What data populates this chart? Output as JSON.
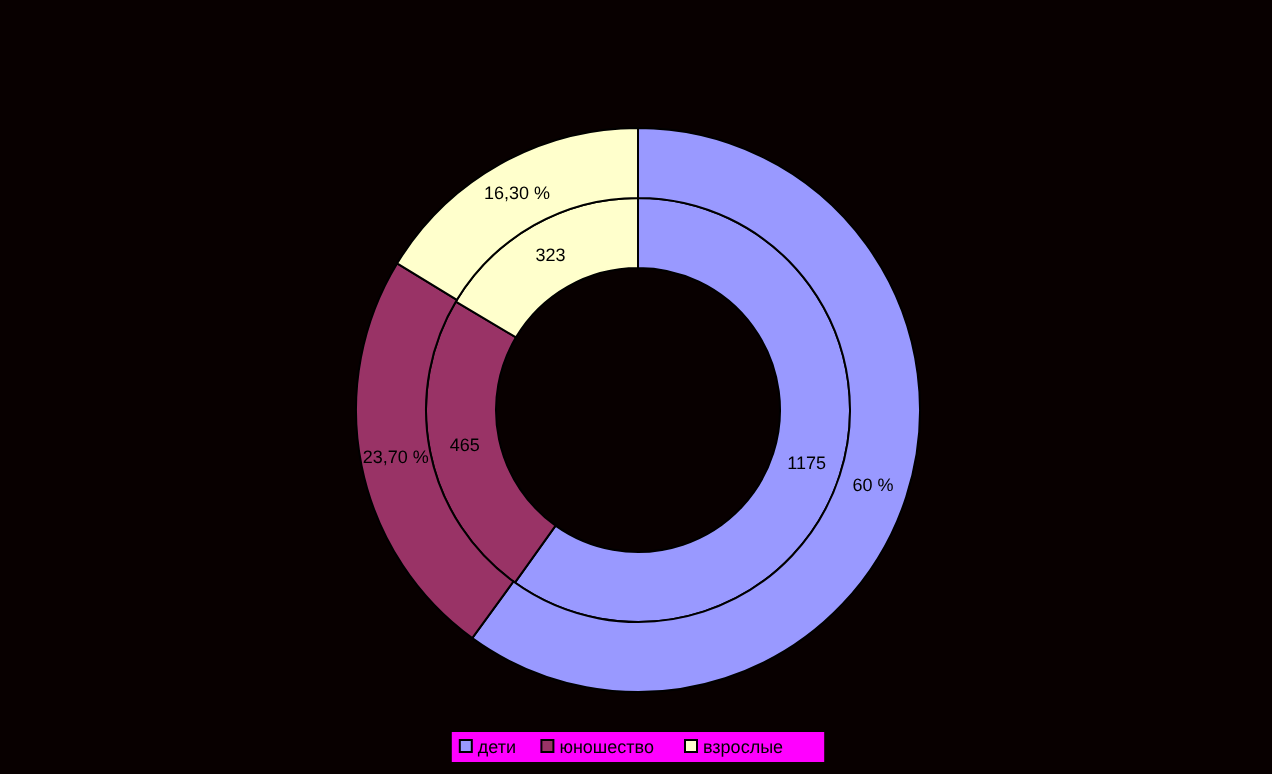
{
  "chart_data": {
    "type": "donut",
    "categories": [
      "дети",
      "юношество",
      "взрослые"
    ],
    "colors": [
      "#9999ff",
      "#993366",
      "#ffffcc"
    ],
    "series": [
      {
        "values": [
          1175,
          465,
          323
        ],
        "value_labels": [
          "1175",
          "465",
          "323"
        ]
      },
      {
        "values": [
          60,
          23.7,
          16.3
        ],
        "value_labels": [
          "60 %",
          "23,70 %",
          "16,30 %"
        ]
      }
    ],
    "legend": "bottom"
  }
}
